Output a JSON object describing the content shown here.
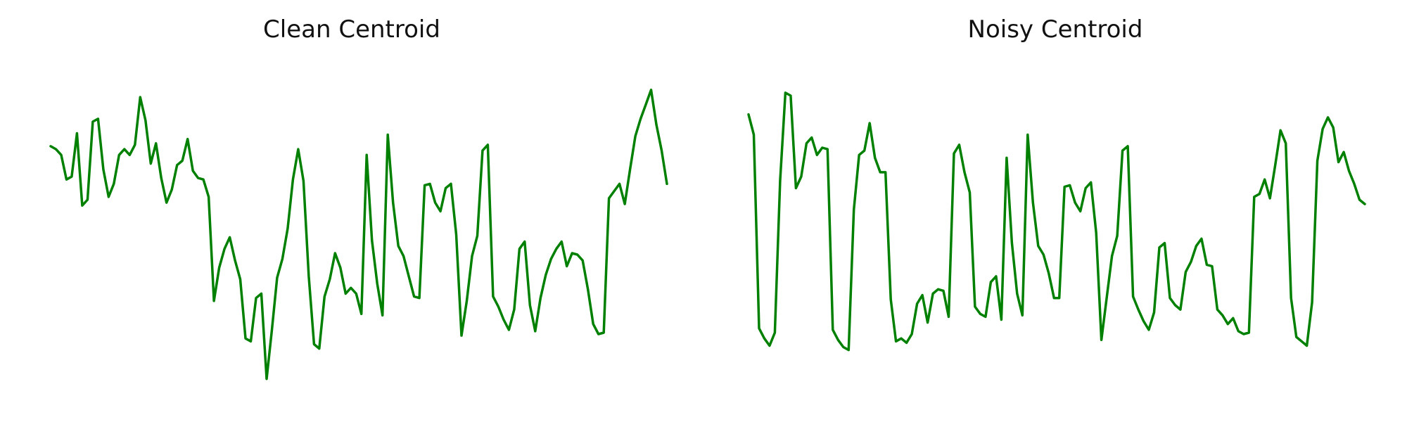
{
  "chart_data": [
    {
      "type": "line",
      "title": "Clean Centroid",
      "xlabel": "",
      "ylabel": "",
      "grid": false,
      "axes_visible": false,
      "line_color": "#008000",
      "xlim": [
        0,
        117
      ],
      "ylim": [
        -1.1,
        1.1
      ],
      "x": [
        0,
        1,
        2,
        3,
        4,
        5,
        6,
        7,
        8,
        9,
        10,
        11,
        12,
        13,
        14,
        15,
        16,
        17,
        18,
        19,
        20,
        21,
        22,
        23,
        24,
        25,
        26,
        27,
        28,
        29,
        30,
        31,
        32,
        33,
        34,
        35,
        36,
        37,
        38,
        39,
        40,
        41,
        42,
        43,
        44,
        45,
        46,
        47,
        48,
        49,
        50,
        51,
        52,
        53,
        54,
        55,
        56,
        57,
        58,
        59,
        60,
        61,
        62,
        63,
        64,
        65,
        66,
        67,
        68,
        69,
        70,
        71,
        72,
        73,
        74,
        75,
        76,
        77,
        78,
        79,
        80,
        81,
        82,
        83,
        84,
        85,
        86,
        87,
        88,
        89,
        90,
        91,
        92,
        93,
        94,
        95,
        96,
        97,
        98,
        99,
        100,
        101,
        102,
        103,
        104,
        105,
        106,
        107,
        108,
        109,
        110,
        111,
        112,
        113,
        114,
        115,
        116,
        117
      ],
      "values": [
        0.56,
        0.54,
        0.5,
        0.33,
        0.35,
        0.65,
        0.15,
        0.19,
        0.73,
        0.75,
        0.4,
        0.21,
        0.3,
        0.5,
        0.54,
        0.5,
        0.57,
        0.9,
        0.74,
        0.44,
        0.58,
        0.34,
        0.17,
        0.26,
        0.43,
        0.46,
        0.61,
        0.39,
        0.34,
        0.33,
        0.21,
        -0.51,
        -0.28,
        -0.15,
        -0.07,
        -0.23,
        -0.36,
        -0.77,
        -0.79,
        -0.49,
        -0.46,
        -1.05,
        -0.71,
        -0.35,
        -0.22,
        -0.01,
        0.33,
        0.54,
        0.32,
        -0.34,
        -0.81,
        -0.84,
        -0.48,
        -0.36,
        -0.18,
        -0.28,
        -0.46,
        -0.42,
        -0.46,
        -0.6,
        0.5,
        -0.09,
        -0.39,
        -0.61,
        0.64,
        0.17,
        -0.13,
        -0.2,
        -0.34,
        -0.48,
        -0.49,
        0.29,
        0.3,
        0.17,
        0.11,
        0.27,
        0.3,
        -0.05,
        -0.75,
        -0.51,
        -0.2,
        -0.06,
        0.53,
        0.57,
        -0.48,
        -0.55,
        -0.64,
        -0.71,
        -0.57,
        -0.15,
        -0.1,
        -0.54,
        -0.72,
        -0.49,
        -0.33,
        -0.22,
        -0.15,
        -0.1,
        -0.27,
        -0.18,
        -0.19,
        -0.23,
        -0.43,
        -0.67,
        -0.74,
        -0.73,
        0.2,
        0.25,
        0.3,
        0.16,
        0.4,
        0.63,
        0.75,
        0.85,
        0.95,
        0.71,
        0.53,
        0.3
      ]
    },
    {
      "type": "line",
      "title": "Noisy Centroid",
      "xlabel": "",
      "ylabel": "",
      "grid": false,
      "axes_visible": false,
      "line_color": "#008000",
      "xlim": [
        0,
        117
      ],
      "ylim": [
        -1.1,
        1.1
      ],
      "x": [
        0,
        1,
        2,
        3,
        4,
        5,
        6,
        7,
        8,
        9,
        10,
        11,
        12,
        13,
        14,
        15,
        16,
        17,
        18,
        19,
        20,
        21,
        22,
        23,
        24,
        25,
        26,
        27,
        28,
        29,
        30,
        31,
        32,
        33,
        34,
        35,
        36,
        37,
        38,
        39,
        40,
        41,
        42,
        43,
        44,
        45,
        46,
        47,
        48,
        49,
        50,
        51,
        52,
        53,
        54,
        55,
        56,
        57,
        58,
        59,
        60,
        61,
        62,
        63,
        64,
        65,
        66,
        67,
        68,
        69,
        70,
        71,
        72,
        73,
        74,
        75,
        76,
        77,
        78,
        79,
        80,
        81,
        82,
        83,
        84,
        85,
        86,
        87,
        88,
        89,
        90,
        91,
        92,
        93,
        94,
        95,
        96,
        97,
        98,
        99,
        100,
        101,
        102,
        103,
        104,
        105,
        106,
        107,
        108,
        109,
        110,
        111,
        112,
        113,
        114,
        115,
        116,
        117
      ],
      "values": [
        0.78,
        0.64,
        -0.7,
        -0.77,
        -0.82,
        -0.73,
        0.32,
        0.93,
        0.91,
        0.27,
        0.35,
        0.58,
        0.62,
        0.5,
        0.55,
        0.54,
        -0.71,
        -0.78,
        -0.83,
        -0.85,
        0.12,
        0.5,
        0.53,
        0.72,
        0.48,
        0.38,
        0.38,
        -0.5,
        -0.79,
        -0.77,
        -0.8,
        -0.74,
        -0.53,
        -0.47,
        -0.66,
        -0.46,
        -0.43,
        -0.44,
        -0.62,
        0.51,
        0.57,
        0.38,
        0.24,
        -0.55,
        -0.6,
        -0.62,
        -0.38,
        -0.34,
        -0.64,
        0.48,
        -0.11,
        -0.46,
        -0.61,
        0.64,
        0.17,
        -0.13,
        -0.19,
        -0.32,
        -0.49,
        -0.49,
        0.28,
        0.29,
        0.17,
        0.11,
        0.27,
        0.31,
        -0.04,
        -0.78,
        -0.49,
        -0.2,
        -0.06,
        0.53,
        0.56,
        -0.48,
        -0.57,
        -0.65,
        -0.71,
        -0.59,
        -0.14,
        -0.11,
        -0.49,
        -0.54,
        -0.57,
        -0.31,
        -0.24,
        -0.13,
        -0.08,
        -0.26,
        -0.27,
        -0.57,
        -0.61,
        -0.67,
        -0.63,
        -0.72,
        -0.74,
        -0.73,
        0.21,
        0.23,
        0.33,
        0.2,
        0.43,
        0.67,
        0.58,
        -0.49,
        -0.76,
        -0.79,
        -0.82,
        -0.52,
        0.46,
        0.68,
        0.76,
        0.69,
        0.45,
        0.52,
        0.39,
        0.3,
        0.19,
        0.16
      ]
    }
  ]
}
